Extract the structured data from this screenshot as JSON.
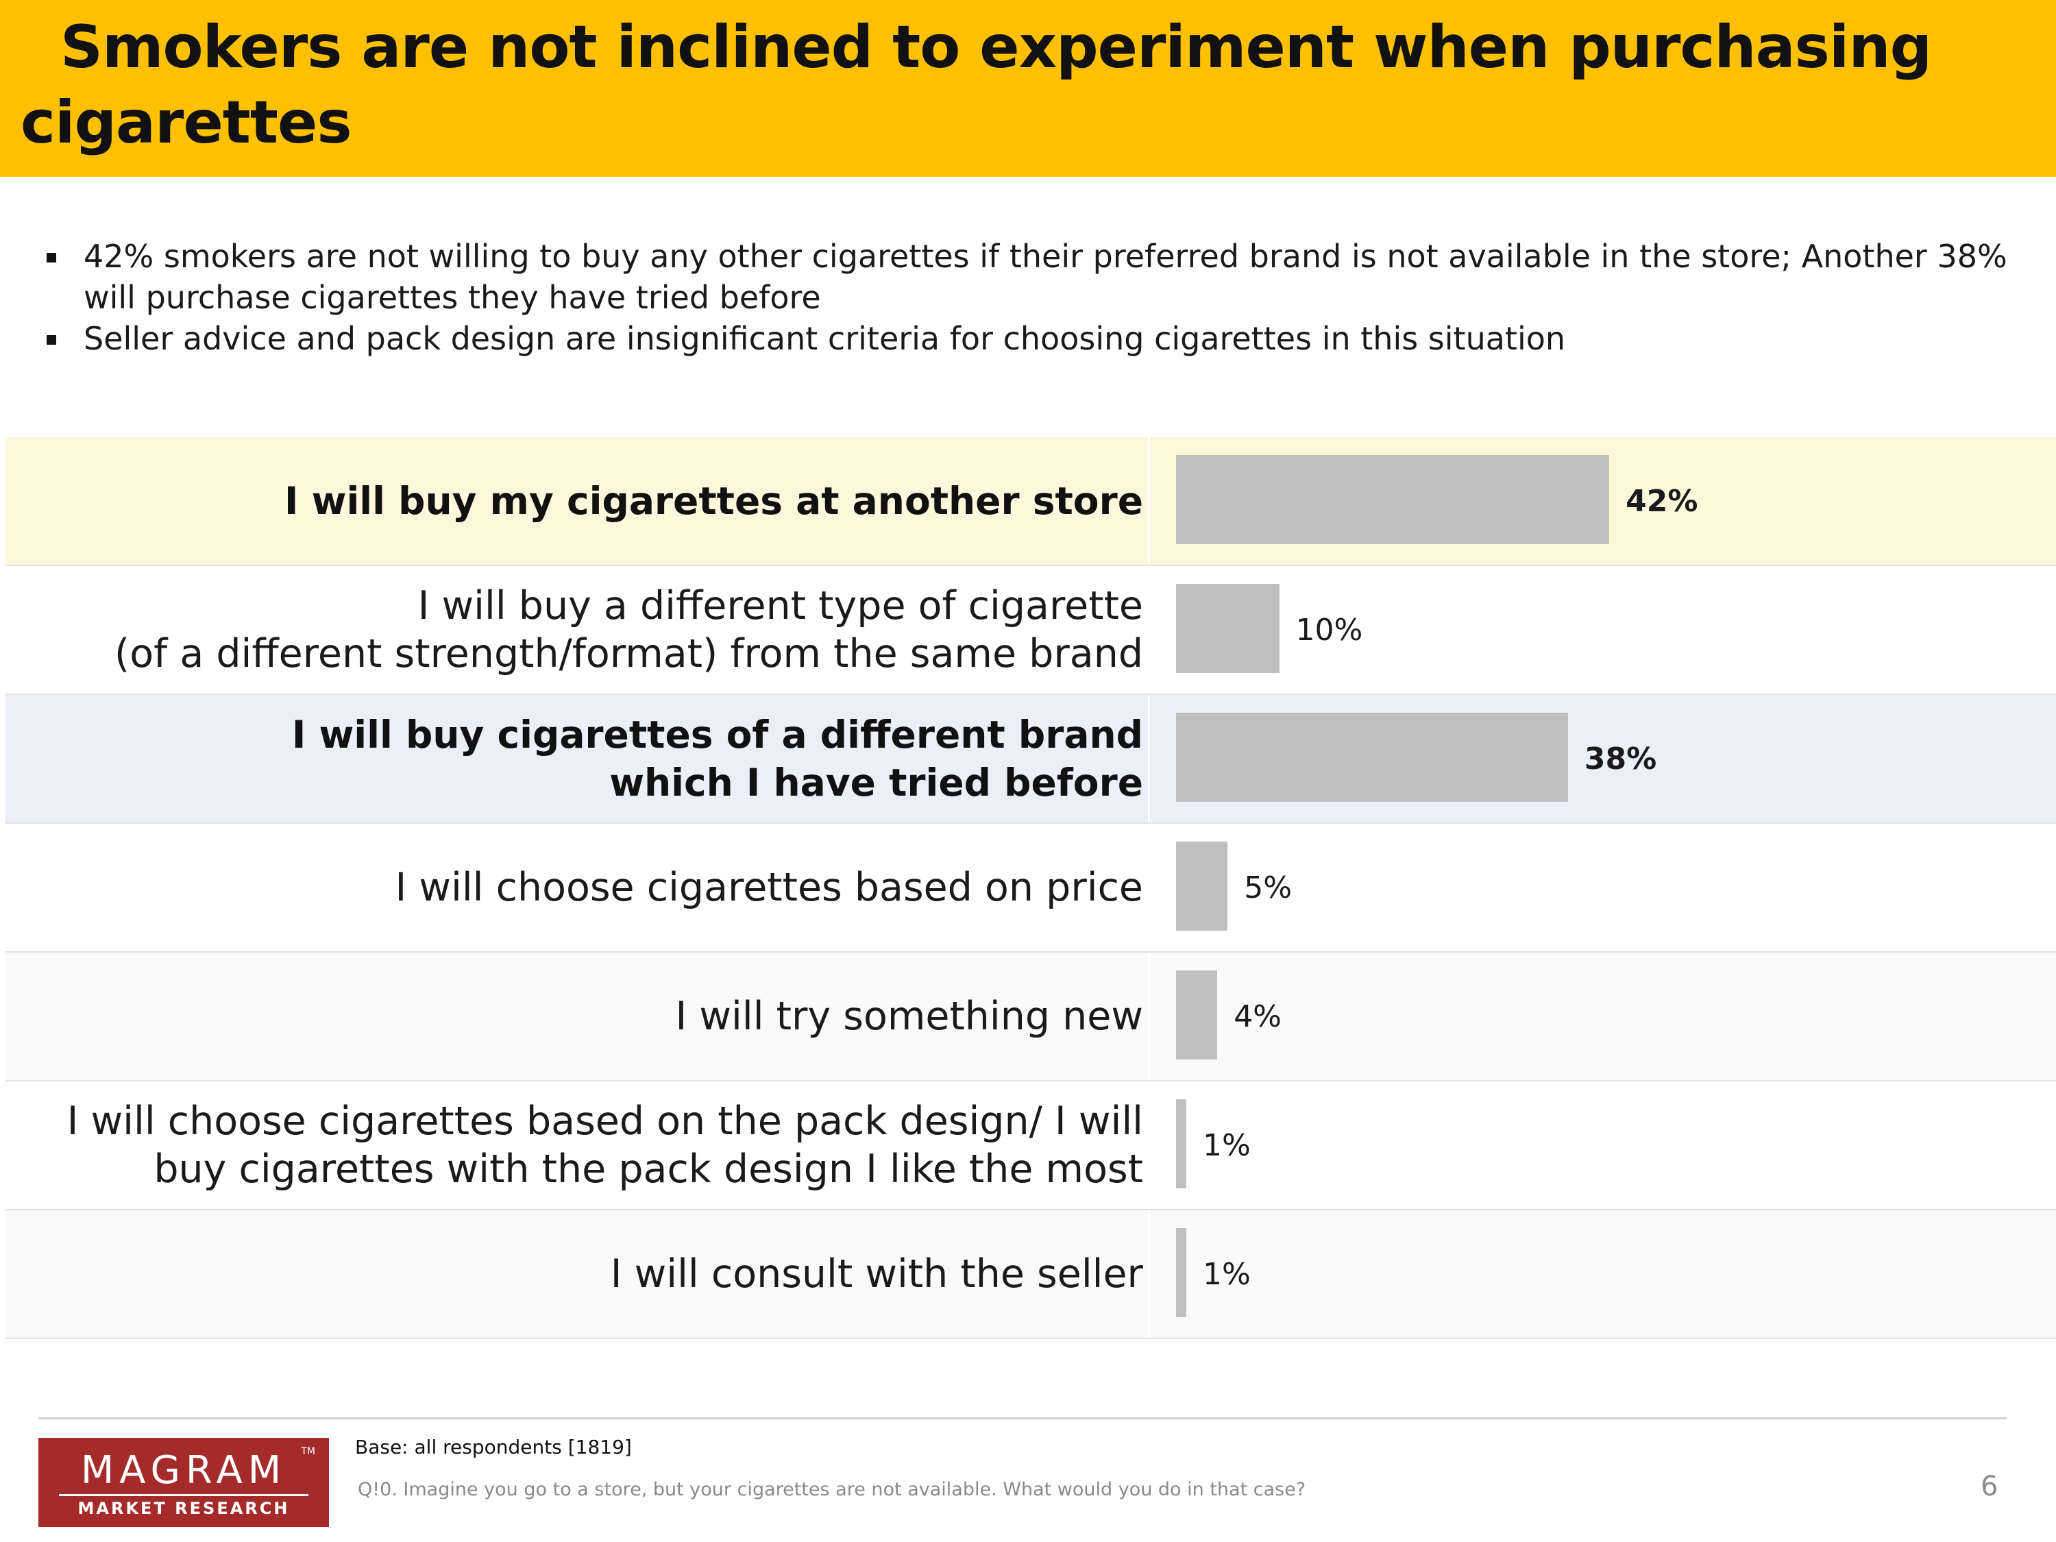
{
  "title": {
    "line1": "Smokers are not inclined to experiment when purchasing",
    "line2": "cigarettes"
  },
  "bullets": [
    "42% smokers are not willing to buy any other cigarettes if their preferred brand is not available in the store; Another 38% will purchase cigarettes they have tried before",
    "Seller advice and pack design are insignificant criteria for choosing cigarettes in this situation"
  ],
  "colors": {
    "title_bar": "#FFC000",
    "bar": "#BFBFBF",
    "highlight_yellow": "#FFF7DC",
    "highlight_blue": "#ECEEF8",
    "row_white": "#FFFFFF",
    "row_grey": "#FAFAFA",
    "logo": "#A52A2A"
  },
  "chart_data": {
    "type": "bar",
    "orientation": "horizontal",
    "categories": [
      "I will buy my cigarettes at another store",
      "I will buy a different type of cigarette\n(of a different strength/format) from the same brand",
      "I will buy cigarettes of a different brand\nwhich I have tried before",
      "I will choose cigarettes based on price",
      "I will try something new",
      "I will choose cigarettes based on the pack design/ I will\nbuy cigarettes with the pack design I like the most",
      "I will consult with the seller"
    ],
    "values": [
      42,
      10,
      38,
      5,
      4,
      1,
      1
    ],
    "value_labels": [
      "42%",
      "10%",
      "38%",
      "5%",
      "4%",
      "1%",
      "1%"
    ],
    "emphasized": [
      true,
      false,
      true,
      false,
      false,
      false,
      false
    ],
    "row_backgrounds": [
      "highlight_yellow",
      "row_white",
      "highlight_blue",
      "row_white",
      "row_grey",
      "row_white",
      "row_grey"
    ],
    "xlim": [
      0,
      100
    ],
    "grid": false,
    "legend": "none"
  },
  "footer": {
    "base": "Base: all respondents [1819]",
    "question": "Q!0. Imagine you go to a store, but your cigarettes are not available. What would you do in that case?",
    "page_number": "6"
  },
  "logo": {
    "name": "MAGRAM",
    "tm": "TM",
    "subtitle": "MARKET RESEARCH"
  }
}
